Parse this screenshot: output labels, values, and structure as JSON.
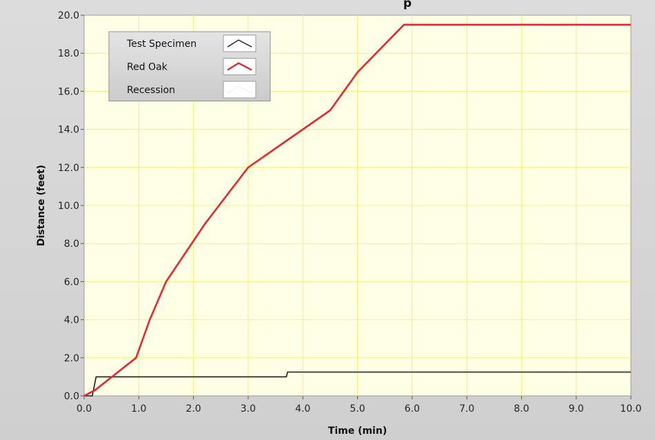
{
  "chart_data": {
    "type": "line",
    "title": "",
    "partial_title": "p",
    "xlabel": "Time (min)",
    "ylabel": "Distance (feet)",
    "xlim": [
      0,
      10
    ],
    "ylim": [
      0,
      20
    ],
    "x_ticks": [
      "0.0",
      "1.0",
      "2.0",
      "3.0",
      "4.0",
      "5.0",
      "6.0",
      "7.0",
      "8.0",
      "9.0",
      "10.0"
    ],
    "y_ticks": [
      "0.0",
      "2.0",
      "4.0",
      "6.0",
      "8.0",
      "10.0",
      "12.0",
      "14.0",
      "16.0",
      "18.0",
      "20.0"
    ],
    "grid": true,
    "legend_position": "top-left",
    "colors": {
      "plot_bg": "#ffffe6",
      "grid": "#f3ef7a",
      "red_oak": "#e8262d",
      "test_specimen": "#1b1b1b",
      "recession": "#ffffff"
    },
    "series": [
      {
        "name": "Test Specimen",
        "color": "#1b1b1b",
        "points": [
          [
            0,
            0
          ],
          [
            0.15,
            0
          ],
          [
            0.22,
            1.0
          ],
          [
            3.7,
            1.0
          ],
          [
            3.72,
            1.25
          ],
          [
            10.0,
            1.25
          ]
        ]
      },
      {
        "name": "Red Oak",
        "color": "#e8262d",
        "points": [
          [
            0,
            0
          ],
          [
            0.2,
            0.3
          ],
          [
            0.95,
            2.0
          ],
          [
            1.2,
            4.0
          ],
          [
            1.5,
            6.0
          ],
          [
            2.2,
            9.0
          ],
          [
            3.0,
            12.0
          ],
          [
            4.5,
            15.0
          ],
          [
            5.0,
            17.0
          ],
          [
            5.85,
            19.5
          ],
          [
            10.0,
            19.5
          ]
        ]
      },
      {
        "name": "Recession",
        "color": "#ffffff",
        "points": []
      }
    ]
  }
}
